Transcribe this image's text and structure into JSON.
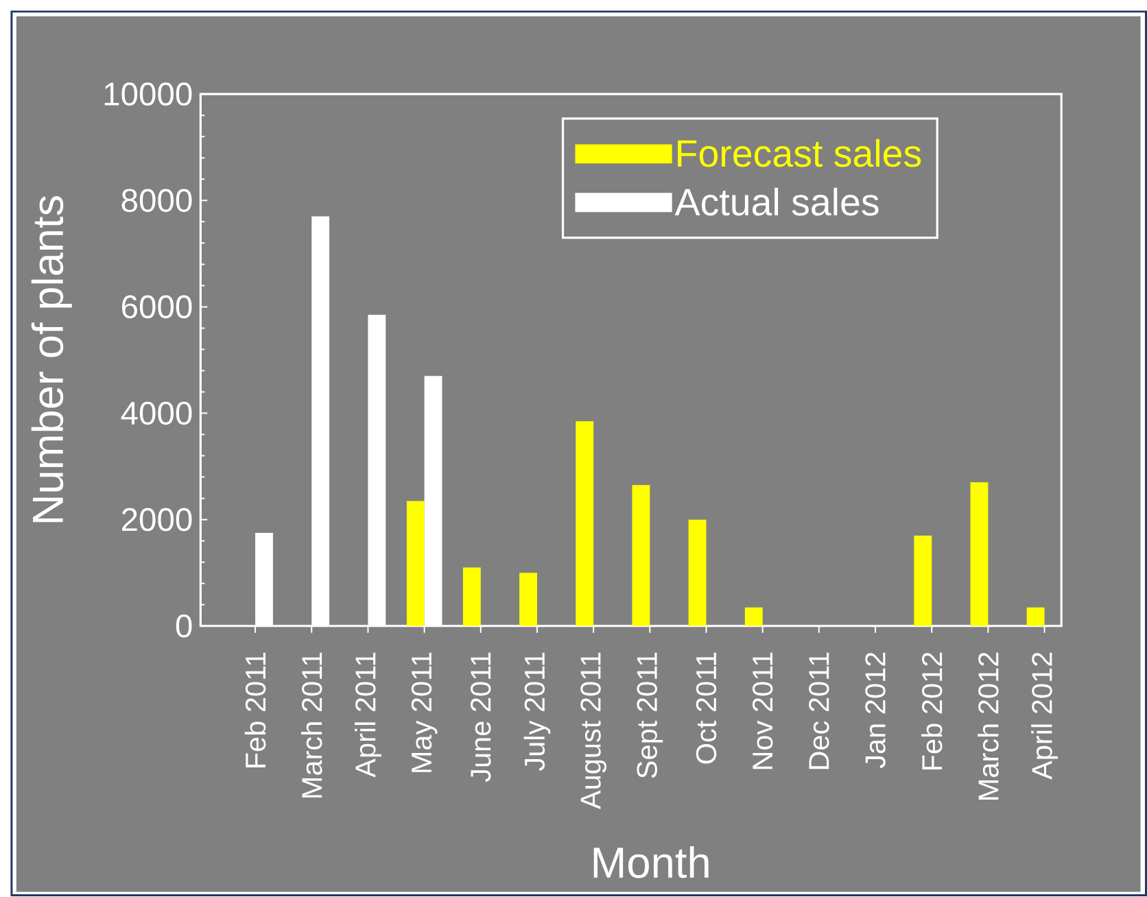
{
  "chart_data": {
    "type": "bar",
    "xlabel": "Month",
    "ylabel": "Number of plants",
    "categories": [
      "Feb 2011",
      "March 2011",
      "April 2011",
      "May 2011",
      "June 2011",
      "July 2011",
      "August 2011",
      "Sept 2011",
      "Oct 2011",
      "Nov 2011",
      "Dec 2011",
      "Jan 2012",
      "Feb 2012",
      "March 2012",
      "April 2012"
    ],
    "series": [
      {
        "name": "Forecast sales",
        "color": "#ffff00",
        "values": [
          null,
          null,
          null,
          2350,
          1100,
          1000,
          3850,
          2650,
          2000,
          350,
          null,
          null,
          1700,
          2700,
          350
        ]
      },
      {
        "name": "Actual sales",
        "color": "#ffffff",
        "values": [
          1750,
          7700,
          5850,
          4700,
          null,
          null,
          null,
          null,
          null,
          null,
          null,
          null,
          null,
          null,
          null
        ]
      }
    ],
    "ylim": [
      0,
      10000
    ],
    "yticks": [
      0,
      2000,
      4000,
      6000,
      8000,
      10000
    ],
    "legend": "top right"
  }
}
